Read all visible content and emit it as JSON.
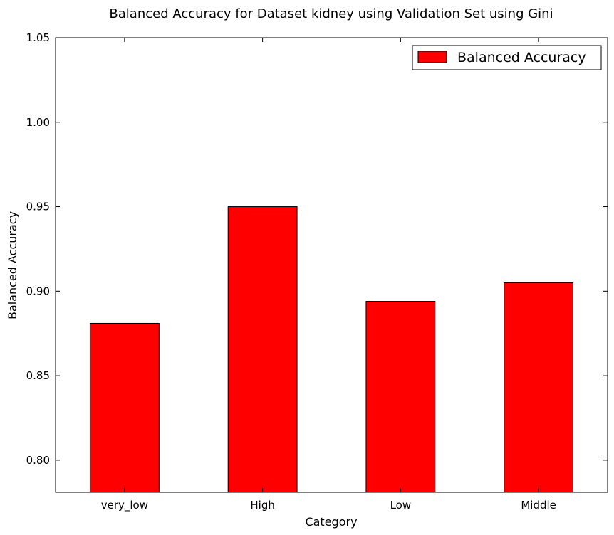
{
  "chart_data": {
    "type": "bar",
    "title": "Balanced Accuracy for Dataset kidney using Validation Set using Gini",
    "xlabel": "Category",
    "ylabel": "Balanced Accuracy",
    "categories": [
      "very_low",
      "High",
      "Low",
      "Middle"
    ],
    "series": [
      {
        "name": "Balanced Accuracy",
        "values": [
          0.881,
          0.95,
          0.894,
          0.905
        ],
        "color": "#ff0000"
      }
    ],
    "ylim": [
      0.781,
      1.05
    ],
    "yticks": [
      0.8,
      0.85,
      0.9,
      0.95,
      1.0,
      1.05
    ],
    "ytick_labels": [
      "0.80",
      "0.85",
      "0.90",
      "0.95",
      "1.00",
      "1.05"
    ],
    "grid": false,
    "legend_position": "top-right"
  }
}
